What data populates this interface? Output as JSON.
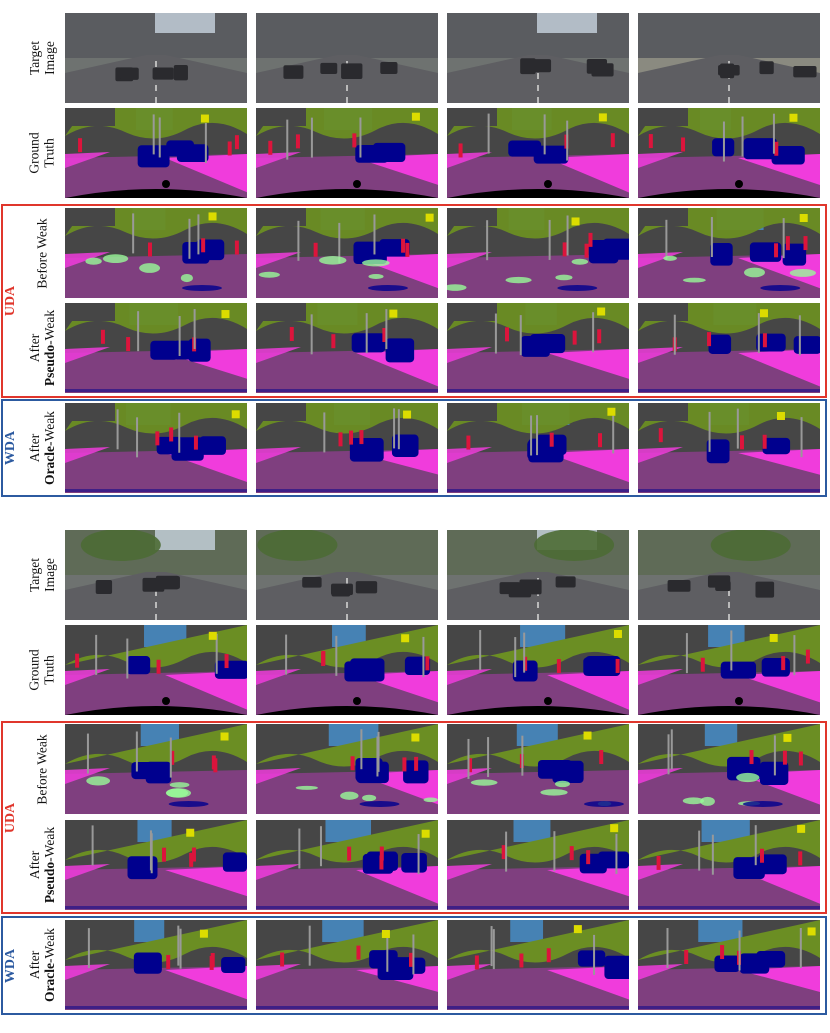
{
  "row_labels": {
    "target": [
      "Target",
      "Image"
    ],
    "gt": [
      "Ground",
      "Truth"
    ],
    "before": [
      "Before Weak"
    ],
    "pseudo": [
      "After",
      "Pseudo",
      "-Weak"
    ],
    "oracle": [
      "After",
      "Oracle",
      "-Weak"
    ]
  },
  "groups": {
    "uda": "UDA",
    "wda": "WDA"
  },
  "colors": {
    "uda_border": "#e0362c",
    "wda_border": "#2c5aa0",
    "road": "#7f3f7f",
    "sidewalk": "#f03cdc",
    "building": "#464646",
    "vegetation": "#6b8e23",
    "sky": "#4682b4",
    "car": "#00008e",
    "person": "#dc143c",
    "sign": "#dcdc00",
    "pole": "#999999",
    "terrain": "#98fb98"
  }
}
